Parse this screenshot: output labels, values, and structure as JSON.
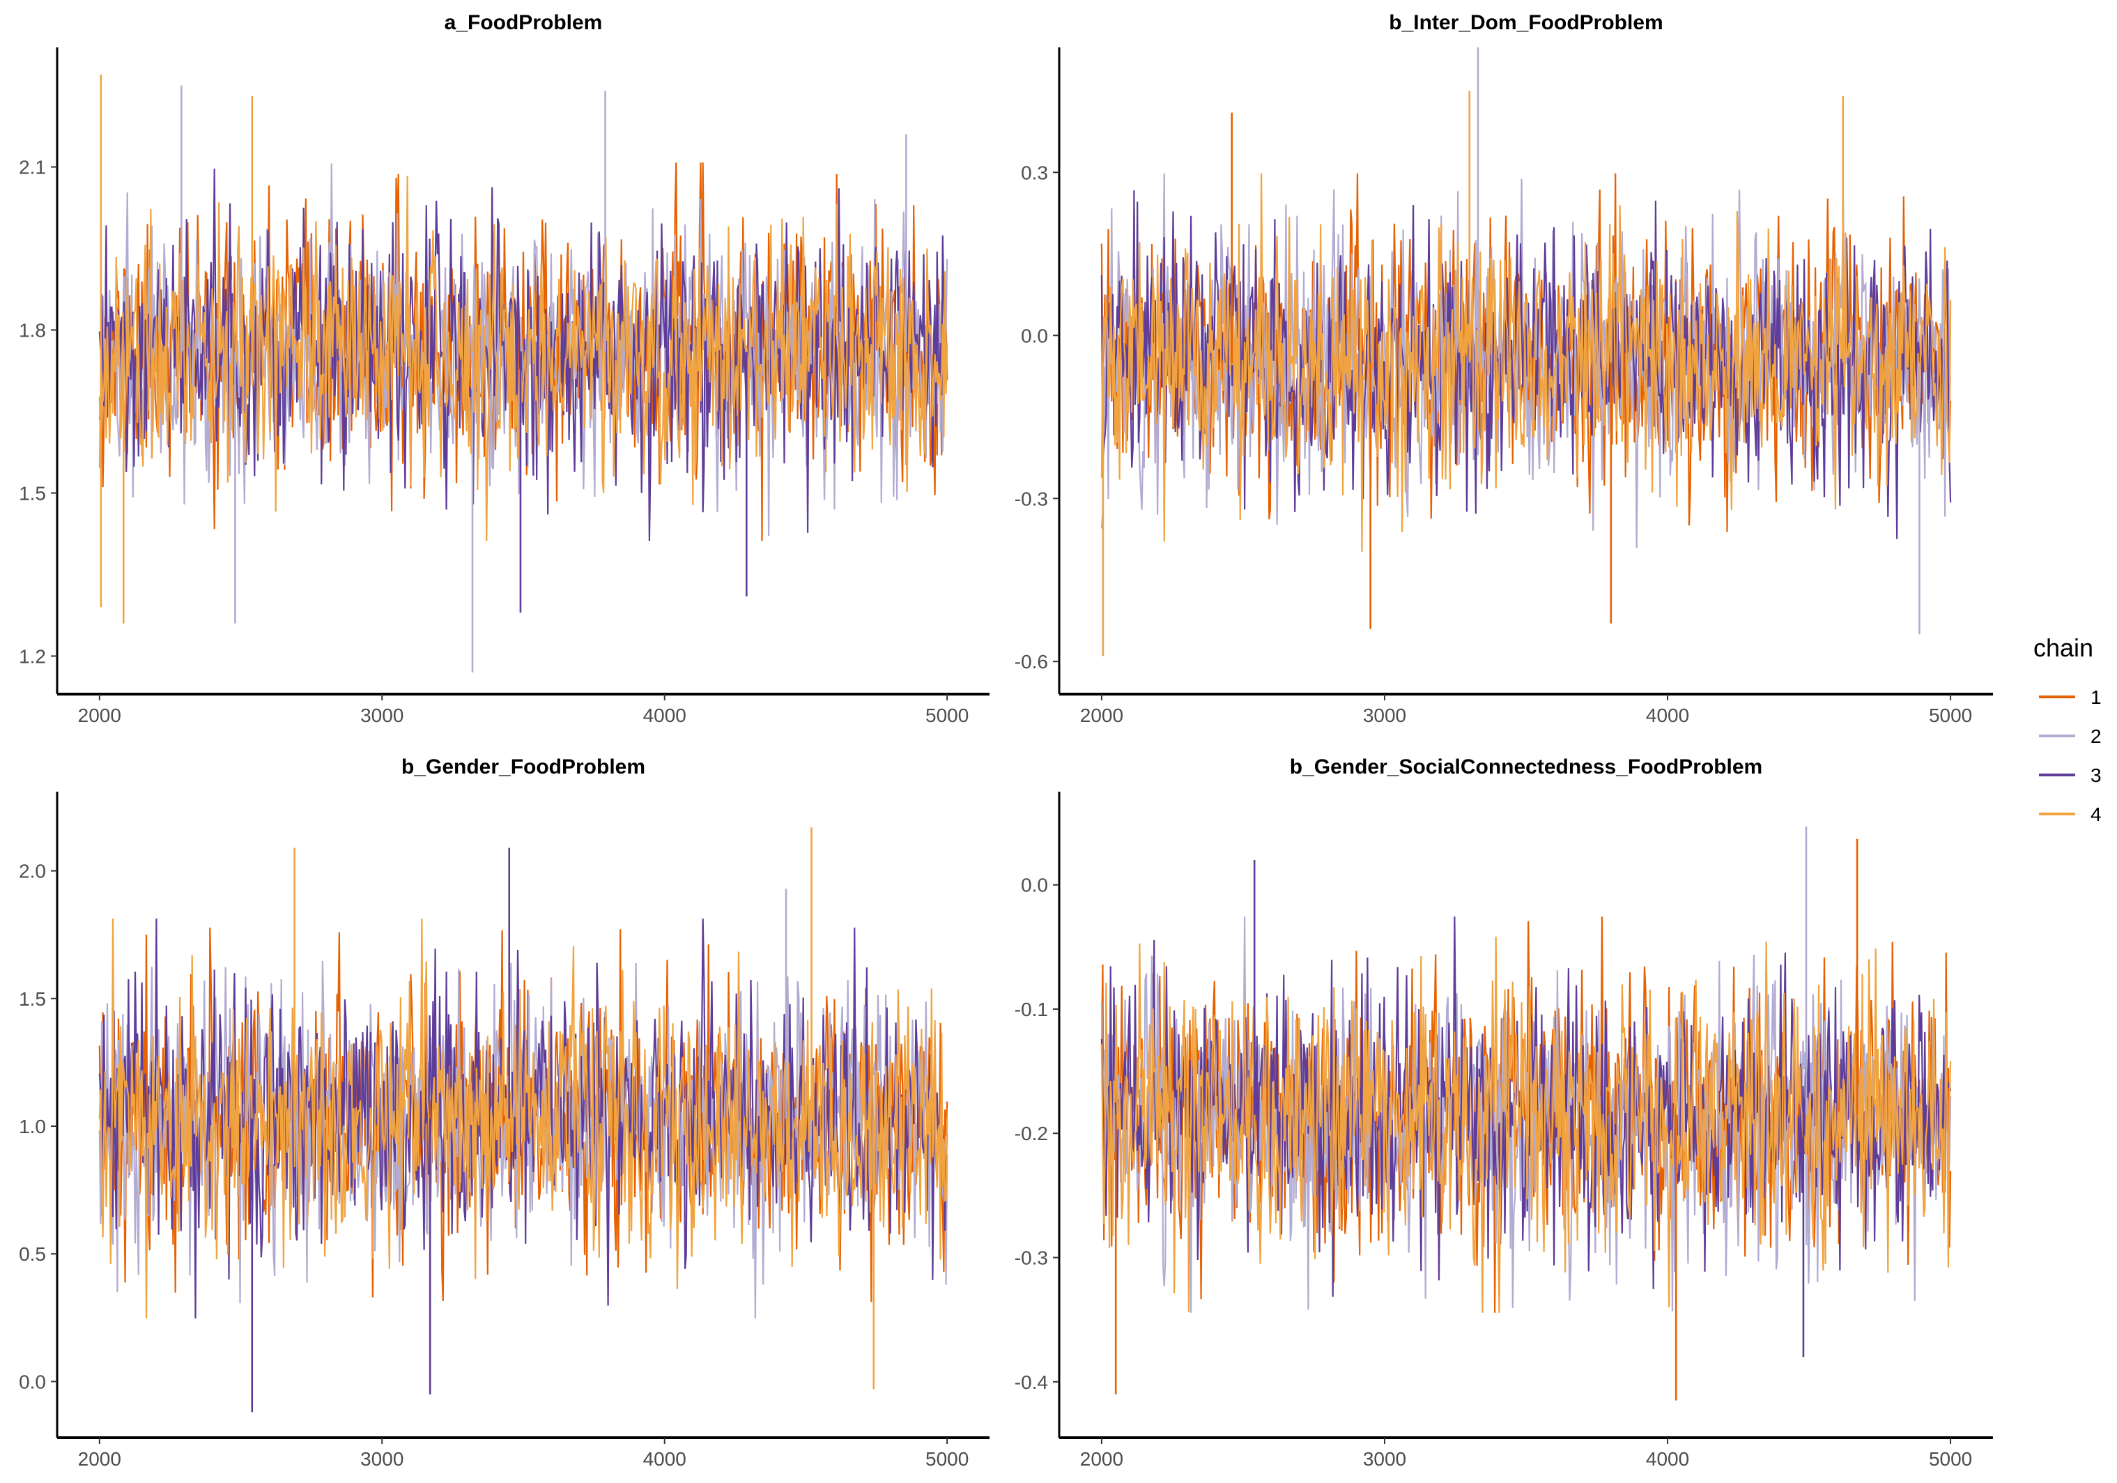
{
  "chart_data": [
    {
      "type": "line",
      "title": "a_FoodProblem",
      "xlabel": "",
      "ylabel": "",
      "xlim": [
        1850,
        5150
      ],
      "ylim": [
        1.13,
        2.32
      ],
      "xticks": [
        2000,
        3000,
        4000,
        5000
      ],
      "yticks": [
        1.2,
        1.5,
        1.8,
        2.1
      ],
      "ytick_labels": [
        "1.2",
        "1.5",
        "1.8",
        "2.1"
      ],
      "iterations": [
        2000,
        5000
      ],
      "center": 1.76,
      "spread": 0.12,
      "seed": 11,
      "extremes": [
        {
          "x": 2005,
          "y": 2.27,
          "chain": 4
        },
        {
          "x": 2005,
          "y": 1.29,
          "chain": 4
        },
        {
          "x": 2085,
          "y": 1.26,
          "chain": 4
        },
        {
          "x": 2290,
          "y": 2.25,
          "chain": 2
        },
        {
          "x": 2480,
          "y": 1.26,
          "chain": 2
        },
        {
          "x": 2540,
          "y": 2.23,
          "chain": 4
        },
        {
          "x": 3320,
          "y": 1.17,
          "chain": 2
        },
        {
          "x": 3790,
          "y": 2.24,
          "chain": 2
        },
        {
          "x": 3490,
          "y": 1.28,
          "chain": 3
        },
        {
          "x": 4290,
          "y": 1.31,
          "chain": 3
        },
        {
          "x": 4855,
          "y": 2.16,
          "chain": 2
        }
      ]
    },
    {
      "type": "line",
      "title": "b_Inter_Dom_FoodProblem",
      "xlabel": "",
      "ylabel": "",
      "xlim": [
        1850,
        5150
      ],
      "ylim": [
        -0.66,
        0.53
      ],
      "xticks": [
        2000,
        3000,
        4000,
        5000
      ],
      "yticks": [
        -0.6,
        -0.3,
        0.0,
        0.3
      ],
      "ytick_labels": [
        "-0.6",
        "-0.3",
        "0.0",
        "0.3"
      ],
      "iterations": [
        2000,
        5000
      ],
      "center": -0.05,
      "spread": 0.12,
      "seed": 23,
      "extremes": [
        {
          "x": 2005,
          "y": -0.59,
          "chain": 4
        },
        {
          "x": 2460,
          "y": 0.41,
          "chain": 1
        },
        {
          "x": 2950,
          "y": -0.54,
          "chain": 1
        },
        {
          "x": 3330,
          "y": 0.53,
          "chain": 2
        },
        {
          "x": 3300,
          "y": 0.45,
          "chain": 4
        },
        {
          "x": 3800,
          "y": -0.53,
          "chain": 1
        },
        {
          "x": 4620,
          "y": 0.44,
          "chain": 4
        },
        {
          "x": 4890,
          "y": -0.55,
          "chain": 2
        }
      ]
    },
    {
      "type": "line",
      "title": "b_Gender_FoodProblem",
      "xlabel": "",
      "ylabel": "",
      "xlim": [
        1850,
        5150
      ],
      "ylim": [
        -0.22,
        2.31
      ],
      "xticks": [
        2000,
        3000,
        4000,
        5000
      ],
      "yticks": [
        0.0,
        0.5,
        1.0,
        1.5,
        2.0
      ],
      "ytick_labels": [
        "0.0",
        "0.5",
        "1.0",
        "1.5",
        "2.0"
      ],
      "iterations": [
        2000,
        5000
      ],
      "center": 1.03,
      "spread": 0.27,
      "seed": 37,
      "extremes": [
        {
          "x": 2540,
          "y": -0.12,
          "chain": 3
        },
        {
          "x": 3170,
          "y": -0.05,
          "chain": 3
        },
        {
          "x": 2690,
          "y": 2.09,
          "chain": 4
        },
        {
          "x": 3450,
          "y": 2.09,
          "chain": 3
        },
        {
          "x": 4520,
          "y": 2.17,
          "chain": 4
        },
        {
          "x": 4740,
          "y": -0.03,
          "chain": 4
        },
        {
          "x": 4430,
          "y": 1.93,
          "chain": 2
        }
      ]
    },
    {
      "type": "line",
      "title": "b_Gender_SocialConnectedness_FoodProblem",
      "xlabel": "",
      "ylabel": "",
      "xlim": [
        1850,
        5150
      ],
      "ylim": [
        -0.445,
        0.075
      ],
      "xticks": [
        2000,
        3000,
        4000,
        5000
      ],
      "yticks": [
        -0.4,
        -0.3,
        -0.2,
        -0.1,
        0.0
      ],
      "ytick_labels": [
        "-0.4",
        "-0.3",
        "-0.2",
        "-0.1",
        "0.0"
      ],
      "iterations": [
        2000,
        5000
      ],
      "center": -0.185,
      "spread": 0.055,
      "seed": 53,
      "extremes": [
        {
          "x": 2050,
          "y": -0.41,
          "chain": 1
        },
        {
          "x": 2540,
          "y": 0.02,
          "chain": 3
        },
        {
          "x": 4030,
          "y": -0.415,
          "chain": 1
        },
        {
          "x": 4490,
          "y": 0.047,
          "chain": 2
        },
        {
          "x": 4670,
          "y": 0.037,
          "chain": 1
        },
        {
          "x": 4480,
          "y": -0.38,
          "chain": 3
        }
      ]
    }
  ],
  "legend": {
    "title": "chain",
    "placement": "right",
    "entries": [
      {
        "label": "1",
        "color": "#e66101"
      },
      {
        "label": "2",
        "color": "#b2abd2"
      },
      {
        "label": "3",
        "color": "#5e3c99"
      },
      {
        "label": "4",
        "color": "#f1a340"
      }
    ]
  },
  "xtick_labels": [
    "2000",
    "3000",
    "4000",
    "5000"
  ]
}
